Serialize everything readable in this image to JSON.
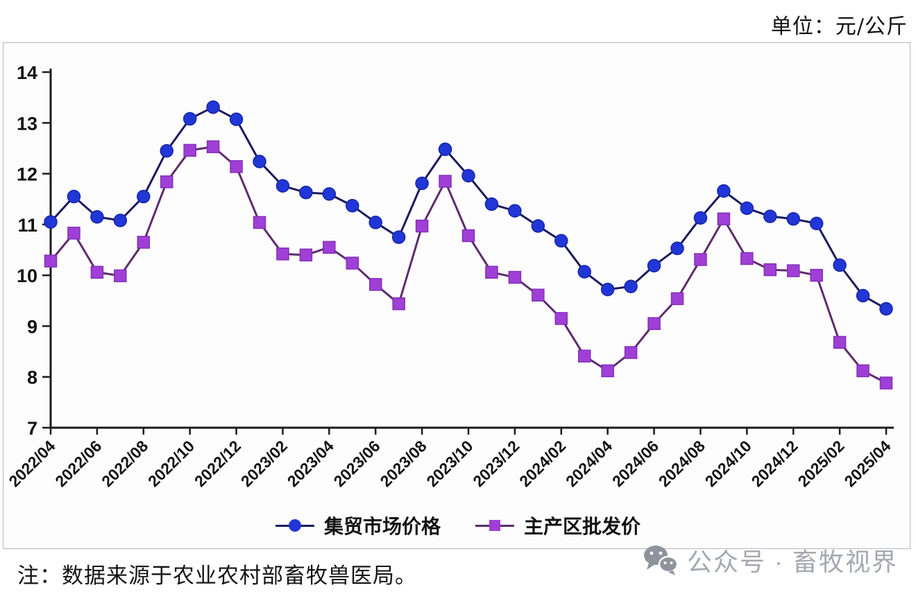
{
  "header": {
    "unit_label": "单位：元/公斤"
  },
  "note": {
    "text": "注：数据来源于农业农村部畜牧兽医局。"
  },
  "watermark": {
    "icon": "wechat-icon",
    "text": "公众号 · 畜牧视界",
    "color": "#a4a8b0"
  },
  "chart_data": {
    "type": "line",
    "title": "",
    "unit": "元/公斤",
    "grid": false,
    "legend_position": "bottom",
    "ylim": [
      7,
      14
    ],
    "y_ticks": [
      7,
      8,
      9,
      10,
      11,
      12,
      13,
      14
    ],
    "x_tick_label_every": 2,
    "x": [
      "2022/04",
      "2022/05",
      "2022/06",
      "2022/07",
      "2022/08",
      "2022/09",
      "2022/10",
      "2022/11",
      "2022/12",
      "2023/01",
      "2023/02",
      "2023/03",
      "2023/04",
      "2023/05",
      "2023/06",
      "2023/07",
      "2023/08",
      "2023/09",
      "2023/10",
      "2023/11",
      "2023/12",
      "2024/01",
      "2024/02",
      "2024/03",
      "2024/04",
      "2024/05",
      "2024/06",
      "2024/07",
      "2024/08",
      "2024/09",
      "2024/10",
      "2024/11",
      "2024/12",
      "2025/01",
      "2025/02",
      "2025/03",
      "2025/04"
    ],
    "series": [
      {
        "name": "集贸市场价格",
        "marker": "circle",
        "color": "#2136d6",
        "edge_color": "#1526a8",
        "line_color": "#1a1a5e",
        "values": [
          11.05,
          11.55,
          11.15,
          11.08,
          11.55,
          12.45,
          13.08,
          13.31,
          13.07,
          12.24,
          11.76,
          11.63,
          11.6,
          11.37,
          11.04,
          10.75,
          11.81,
          12.48,
          11.96,
          11.4,
          11.27,
          10.97,
          10.68,
          10.07,
          9.72,
          9.78,
          10.19,
          10.53,
          11.13,
          11.66,
          11.32,
          11.16,
          11.11,
          11.02,
          10.2,
          9.6,
          9.34
        ]
      },
      {
        "name": "主产区批发价",
        "marker": "square",
        "color": "#a03fd6",
        "edge_color": "#8230b8",
        "line_color": "#5e2b6e",
        "values": [
          10.28,
          10.83,
          10.06,
          9.99,
          10.65,
          11.84,
          12.46,
          12.53,
          12.14,
          11.04,
          10.42,
          10.4,
          10.55,
          10.24,
          9.82,
          9.44,
          10.97,
          11.85,
          10.78,
          10.06,
          9.96,
          9.61,
          9.15,
          8.41,
          8.12,
          8.48,
          9.05,
          9.54,
          10.31,
          11.11,
          10.33,
          10.11,
          10.09,
          10.0,
          8.68,
          8.12,
          7.88
        ]
      }
    ]
  }
}
